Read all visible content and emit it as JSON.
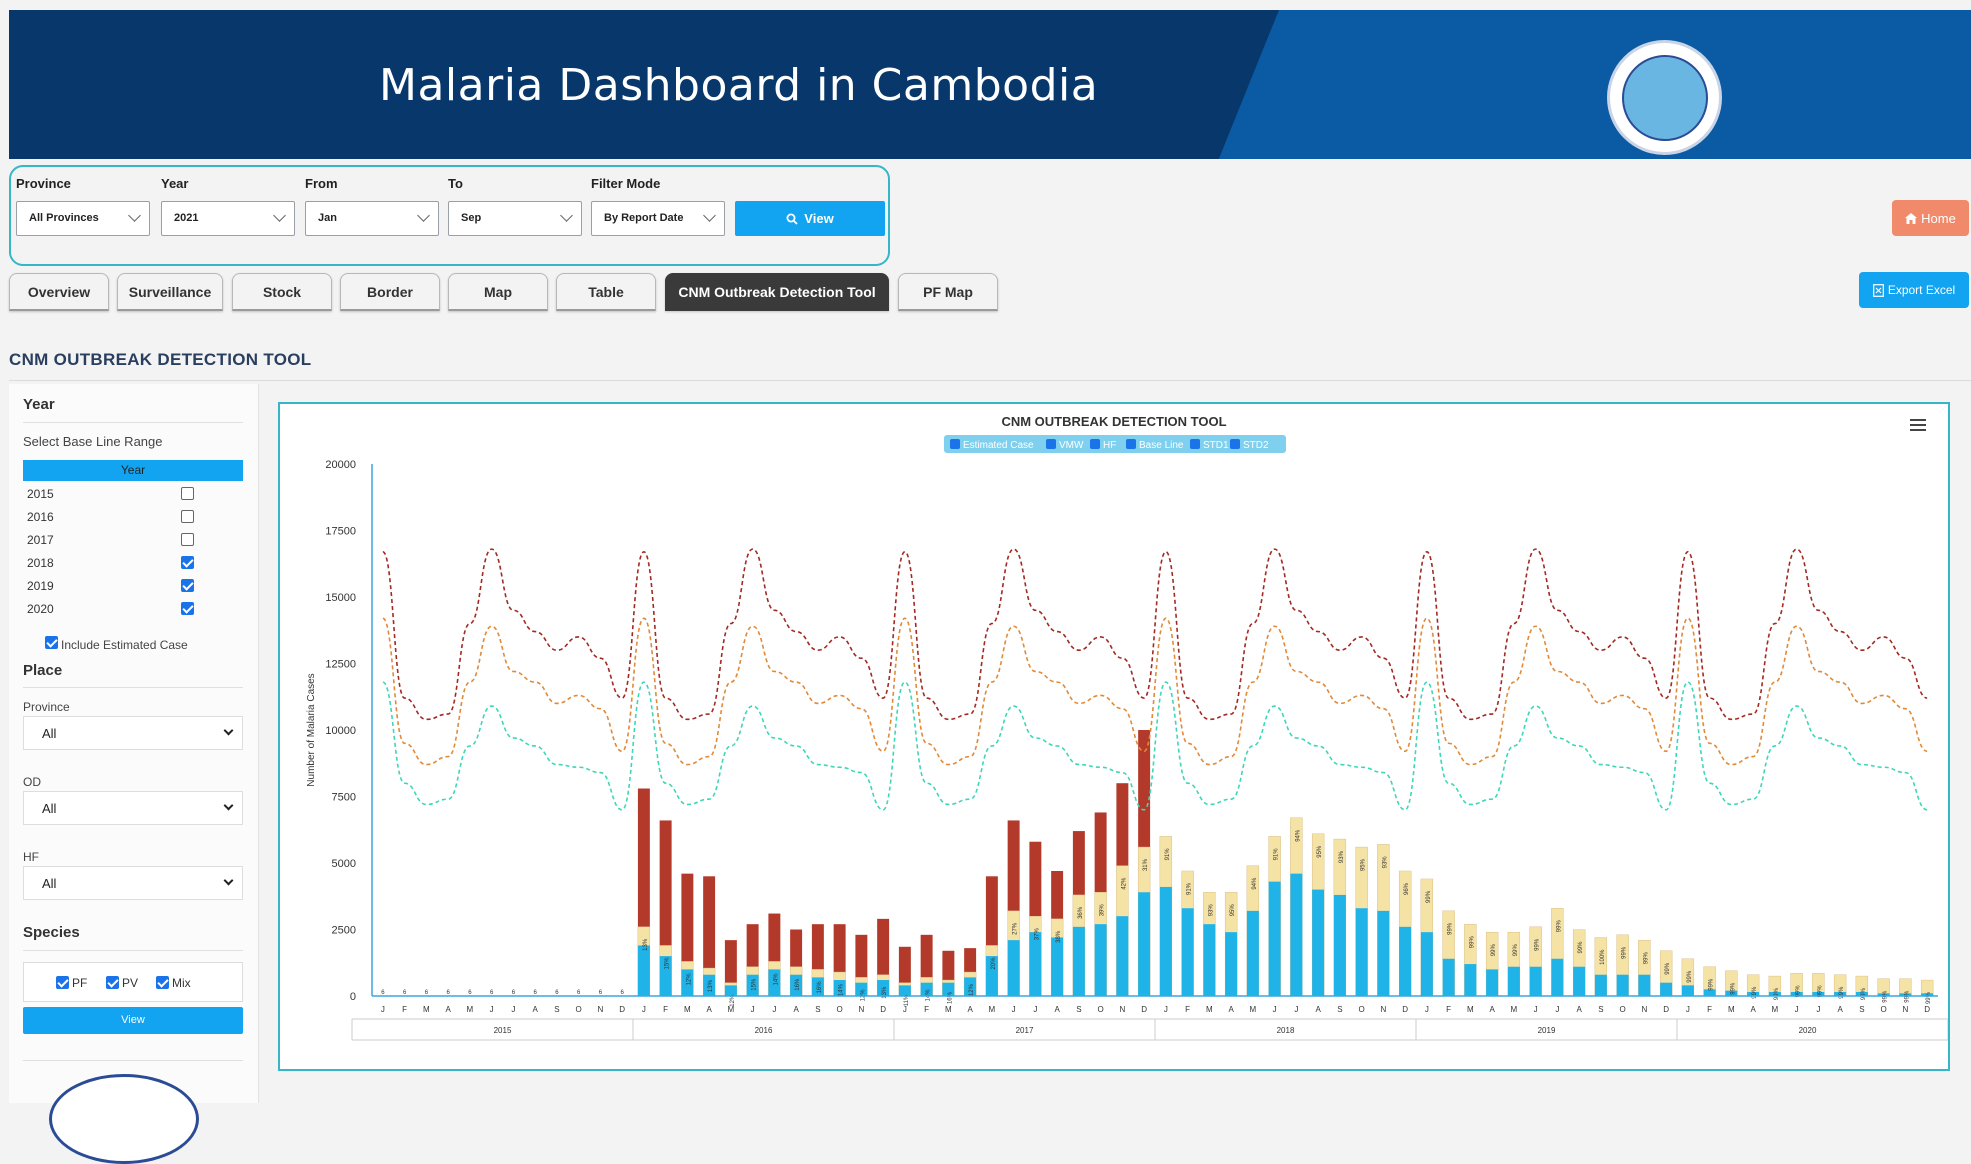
{
  "header": {
    "title": "Malaria Dashboard in Cambodia",
    "logo_icon": "cnm-logo"
  },
  "filters": {
    "province": {
      "label": "Province",
      "value": "All Provinces"
    },
    "year": {
      "label": "Year",
      "value": "2021"
    },
    "from": {
      "label": "From",
      "value": "Jan"
    },
    "to": {
      "label": "To",
      "value": "Sep"
    },
    "mode": {
      "label": "Filter Mode",
      "value": "By Report Date"
    },
    "view_label": "View"
  },
  "home_label": "Home",
  "export_label": "Export Excel",
  "tabs": [
    "Overview",
    "Surveillance",
    "Stock",
    "Border",
    "Map",
    "Table",
    "CNM Outbreak Detection Tool",
    "PF Map"
  ],
  "active_tab": "CNM Outbreak Detection Tool",
  "section_title": "CNM OUTBREAK DETECTION TOOL",
  "sidebar": {
    "year_heading": "Year",
    "baseline_label": "Select Base Line Range",
    "year_col": "Year",
    "years": [
      {
        "year": "2015",
        "checked": false
      },
      {
        "year": "2016",
        "checked": false
      },
      {
        "year": "2017",
        "checked": false
      },
      {
        "year": "2018",
        "checked": true
      },
      {
        "year": "2019",
        "checked": true
      },
      {
        "year": "2020",
        "checked": true
      }
    ],
    "include_estimated": "Include Estimated Case",
    "place_heading": "Place",
    "province_label": "Province",
    "province_value": "All",
    "od_label": "OD",
    "od_value": "All",
    "hf_label": "HF",
    "hf_value": "All",
    "species_heading": "Species",
    "species": [
      "PF",
      "PV",
      "Mix"
    ],
    "view_label": "View"
  },
  "colors": {
    "accent": "#12a4f0",
    "header": "#08386b",
    "vmw": "#b33a2b",
    "hf": "#f5e3a6",
    "base": "#1fb3e8",
    "std1": "#e08a3a",
    "std2": "#3fd6b8",
    "estimated": "#a12a22"
  },
  "chart_data": {
    "type": "bar",
    "title": "CNM OUTBREAK DETECTION TOOL",
    "ylabel": "Number of Malaria Cases",
    "ylim": [
      0,
      20000
    ],
    "yticks": [
      0,
      2500,
      5000,
      7500,
      10000,
      12500,
      15000,
      17500,
      20000
    ],
    "legend": [
      "Estimated Case",
      "VMW",
      "HF",
      "Base Line",
      "STD1",
      "STD2"
    ],
    "years": [
      "2015",
      "2016",
      "2017",
      "2018",
      "2019",
      "2020"
    ],
    "months": [
      "J",
      "F",
      "M",
      "A",
      "M",
      "J",
      "J",
      "A",
      "S",
      "O",
      "N",
      "D"
    ],
    "bars": [
      {
        "t": 0,
        "hf": 0,
        "base": 0,
        "p": "6"
      },
      {
        "t": 0,
        "hf": 0,
        "base": 0,
        "p": "6"
      },
      {
        "t": 0,
        "hf": 0,
        "base": 0,
        "p": "6"
      },
      {
        "t": 0,
        "hf": 0,
        "base": 0,
        "p": "6"
      },
      {
        "t": 0,
        "hf": 0,
        "base": 0,
        "p": "6"
      },
      {
        "t": 0,
        "hf": 0,
        "base": 0,
        "p": "6"
      },
      {
        "t": 0,
        "hf": 0,
        "base": 0,
        "p": "6"
      },
      {
        "t": 0,
        "hf": 0,
        "base": 0,
        "p": "6"
      },
      {
        "t": 0,
        "hf": 0,
        "base": 0,
        "p": "6"
      },
      {
        "t": 0,
        "hf": 0,
        "base": 0,
        "p": "6"
      },
      {
        "t": 0,
        "hf": 0,
        "base": 0,
        "p": "6"
      },
      {
        "t": 0,
        "hf": 0,
        "base": 0,
        "p": "6"
      },
      {
        "t": 7800,
        "hf": 2600,
        "base": 1900,
        "p": "13%"
      },
      {
        "t": 6600,
        "hf": 1900,
        "base": 1500,
        "p": "15%"
      },
      {
        "t": 4600,
        "hf": 1300,
        "base": 1000,
        "p": "12%"
      },
      {
        "t": 4500,
        "hf": 1050,
        "base": 800,
        "p": "13%"
      },
      {
        "t": 2100,
        "hf": 500,
        "base": 400,
        "p": "12%"
      },
      {
        "t": 2700,
        "hf": 1100,
        "base": 800,
        "p": "15%"
      },
      {
        "t": 3100,
        "hf": 1300,
        "base": 1000,
        "p": "14%"
      },
      {
        "t": 2500,
        "hf": 1100,
        "base": 800,
        "p": "16%"
      },
      {
        "t": 2700,
        "hf": 1000,
        "base": 700,
        "p": "16%"
      },
      {
        "t": 2700,
        "hf": 900,
        "base": 600,
        "p": "14%"
      },
      {
        "t": 2300,
        "hf": 700,
        "base": 500,
        "p": "12%"
      },
      {
        "t": 2900,
        "hf": 800,
        "base": 600,
        "p": "13%"
      },
      {
        "t": 1850,
        "hf": 500,
        "base": 400,
        "p": "11%"
      },
      {
        "t": 2300,
        "hf": 700,
        "base": 500,
        "p": "14%"
      },
      {
        "t": 1700,
        "hf": 600,
        "base": 500,
        "p": "16%"
      },
      {
        "t": 1800,
        "hf": 900,
        "base": 700,
        "p": "12%"
      },
      {
        "t": 4500,
        "hf": 1900,
        "base": 1500,
        "p": "20%"
      },
      {
        "t": 6600,
        "hf": 3200,
        "base": 2100,
        "p": "27%"
      },
      {
        "t": 5800,
        "hf": 3000,
        "base": 2400,
        "p": "37%"
      },
      {
        "t": 4700,
        "hf": 2900,
        "base": 2200,
        "p": "38%"
      },
      {
        "t": 6200,
        "hf": 3800,
        "base": 2600,
        "p": "36%"
      },
      {
        "t": 6900,
        "hf": 3900,
        "base": 2700,
        "p": "39%"
      },
      {
        "t": 8000,
        "hf": 4900,
        "base": 3000,
        "p": "42%"
      },
      {
        "t": 10000,
        "hf": 5600,
        "base": 3900,
        "p": "31%"
      },
      {
        "t": 6000,
        "hf": 6000,
        "base": 4100,
        "p": "91%"
      },
      {
        "t": 4700,
        "hf": 4700,
        "base": 3300,
        "p": "91%"
      },
      {
        "t": 3900,
        "hf": 3900,
        "base": 2700,
        "p": "93%"
      },
      {
        "t": 3900,
        "hf": 3900,
        "base": 2400,
        "p": "95%"
      },
      {
        "t": 4900,
        "hf": 4900,
        "base": 3200,
        "p": "94%"
      },
      {
        "t": 6000,
        "hf": 6000,
        "base": 4300,
        "p": "91%"
      },
      {
        "t": 6700,
        "hf": 6700,
        "base": 4600,
        "p": "94%"
      },
      {
        "t": 6100,
        "hf": 6100,
        "base": 4000,
        "p": "95%"
      },
      {
        "t": 5900,
        "hf": 5900,
        "base": 3800,
        "p": "93%"
      },
      {
        "t": 5600,
        "hf": 5600,
        "base": 3300,
        "p": "95%"
      },
      {
        "t": 5700,
        "hf": 5700,
        "base": 3200,
        "p": "93%"
      },
      {
        "t": 4700,
        "hf": 4700,
        "base": 2600,
        "p": "96%"
      },
      {
        "t": 4400,
        "hf": 4400,
        "base": 2400,
        "p": "99%"
      },
      {
        "t": 3200,
        "hf": 3200,
        "base": 1400,
        "p": "99%"
      },
      {
        "t": 2700,
        "hf": 2700,
        "base": 1200,
        "p": "99%"
      },
      {
        "t": 2400,
        "hf": 2400,
        "base": 1000,
        "p": "99%"
      },
      {
        "t": 2400,
        "hf": 2400,
        "base": 1100,
        "p": "99%"
      },
      {
        "t": 2600,
        "hf": 2600,
        "base": 1100,
        "p": "99%"
      },
      {
        "t": 3300,
        "hf": 3300,
        "base": 1400,
        "p": "99%"
      },
      {
        "t": 2500,
        "hf": 2500,
        "base": 1100,
        "p": "99%"
      },
      {
        "t": 2200,
        "hf": 2200,
        "base": 800,
        "p": "100%"
      },
      {
        "t": 2300,
        "hf": 2300,
        "base": 800,
        "p": "99%"
      },
      {
        "t": 2100,
        "hf": 2100,
        "base": 800,
        "p": "99%"
      },
      {
        "t": 1700,
        "hf": 1700,
        "base": 500,
        "p": "99%"
      },
      {
        "t": 1400,
        "hf": 1400,
        "base": 400,
        "p": "99%"
      },
      {
        "t": 1100,
        "hf": 1100,
        "base": 250,
        "p": "99%"
      },
      {
        "t": 950,
        "hf": 950,
        "base": 200,
        "p": "99%"
      },
      {
        "t": 800,
        "hf": 800,
        "base": 150,
        "p": "99%"
      },
      {
        "t": 750,
        "hf": 750,
        "base": 150,
        "p": "99%"
      },
      {
        "t": 850,
        "hf": 850,
        "base": 150,
        "p": "99%"
      },
      {
        "t": 850,
        "hf": 850,
        "base": 150,
        "p": "99%"
      },
      {
        "t": 800,
        "hf": 800,
        "base": 150,
        "p": "99%"
      },
      {
        "t": 750,
        "hf": 750,
        "base": 150,
        "p": "99%"
      },
      {
        "t": 650,
        "hf": 650,
        "base": 100,
        "p": "99%"
      },
      {
        "t": 650,
        "hf": 650,
        "base": 100,
        "p": "99%"
      },
      {
        "t": 600,
        "hf": 600,
        "base": 100,
        "p": "99%"
      }
    ],
    "estimated_case": [
      16700,
      11200,
      10400,
      10600,
      14000,
      16800,
      14500,
      13700,
      13000,
      13500,
      12700,
      11200
    ],
    "std1": [
      14200,
      9500,
      8700,
      9000,
      11800,
      13900,
      12200,
      11800,
      11000,
      11300,
      10800,
      9200
    ],
    "std2": [
      11800,
      8000,
      7200,
      7400,
      9400,
      10900,
      9700,
      9400,
      8700,
      8600,
      8400,
      7000
    ]
  }
}
